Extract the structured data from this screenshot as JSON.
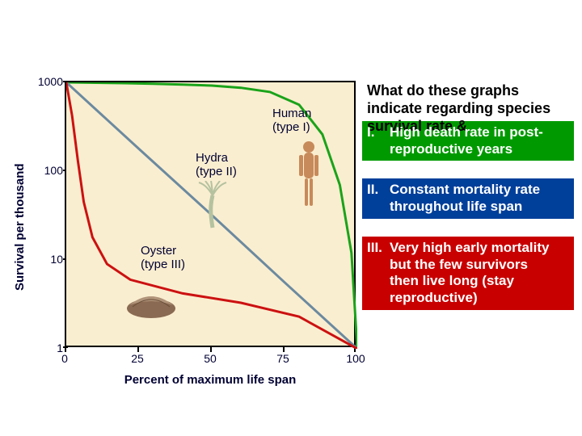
{
  "chart": {
    "background_color": "#faeed0",
    "border_color": "#000000",
    "ylabel": "Survival per thousand",
    "xlabel": "Percent of maximum life span",
    "ylim": [
      1,
      1000
    ],
    "yscale": "log",
    "yticks": [
      1000,
      100,
      10,
      1
    ],
    "xlim": [
      0,
      100
    ],
    "xticks": [
      0,
      25,
      50,
      75,
      100
    ],
    "curves": {
      "human": {
        "label": "Human\n(type I)",
        "color": "#1aa31a",
        "stroke_width": 3,
        "points": [
          [
            0,
            1000
          ],
          [
            10,
            990
          ],
          [
            20,
            980
          ],
          [
            30,
            965
          ],
          [
            40,
            945
          ],
          [
            50,
            920
          ],
          [
            60,
            870
          ],
          [
            70,
            780
          ],
          [
            80,
            560
          ],
          [
            88,
            260
          ],
          [
            94,
            70
          ],
          [
            98,
            12
          ],
          [
            100,
            1
          ]
        ]
      },
      "hydra": {
        "label": "Hydra\n(type II)",
        "color": "#6b8aa0",
        "stroke_width": 3,
        "points": [
          [
            0,
            1000
          ],
          [
            25,
            178
          ],
          [
            50,
            32
          ],
          [
            75,
            5.6
          ],
          [
            100,
            1
          ]
        ]
      },
      "oyster": {
        "label": "Oyster\n(type III)",
        "color": "#cc1111",
        "stroke_width": 3,
        "points": [
          [
            0,
            1000
          ],
          [
            2,
            420
          ],
          [
            4,
            130
          ],
          [
            6,
            45
          ],
          [
            9,
            18
          ],
          [
            14,
            9
          ],
          [
            22,
            6
          ],
          [
            40,
            4.2
          ],
          [
            60,
            3.3
          ],
          [
            80,
            2.3
          ],
          [
            100,
            1
          ]
        ]
      }
    },
    "label_fontsize": 15,
    "tick_fontsize": 14
  },
  "question": "What do these graphs indicate regarding species survival rate  &",
  "answers": {
    "i": {
      "num": "I.",
      "text": "High death rate in post-reproductive years",
      "bg": "#009a00"
    },
    "ii": {
      "num": "II.",
      "text": "Constant mortality rate throughout life span",
      "bg": "#003f9a"
    },
    "iii": {
      "num": "III.",
      "text": "Very high early mortality but the few survivors then live long (stay reproductive)",
      "bg": "#c80000"
    }
  },
  "icons": {
    "oyster": "oyster-icon",
    "hydra": "hydra-icon",
    "human": "human-icon"
  }
}
